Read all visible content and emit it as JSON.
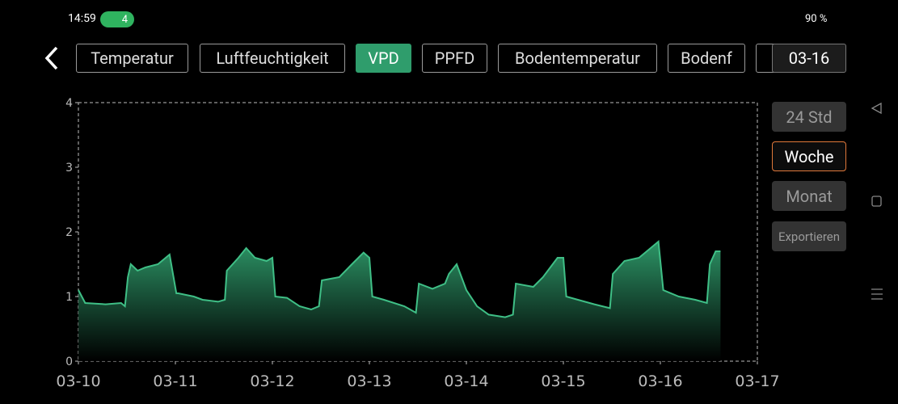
{
  "status_bar": {
    "time": "14:59",
    "badge": "4",
    "battery": "90 %"
  },
  "tabs": [
    "Temperatur",
    "Luftfeuchtigkeit",
    "VPD",
    "PPFD",
    "Bodentemperatur",
    "Bodenf"
  ],
  "date_button": "03-16",
  "side_buttons": [
    "24 Std",
    "Woche",
    "Monat",
    "Exportieren"
  ],
  "chart_data": {
    "type": "area",
    "color": "#3fbf86",
    "x": [
      0,
      0.07,
      0.28,
      0.44,
      0.48,
      0.51,
      0.54,
      0.61,
      0.69,
      0.82,
      0.9,
      0.94,
      1.01,
      1.03,
      1.19,
      1.28,
      1.44,
      1.51,
      1.53,
      1.65,
      1.73,
      1.82,
      1.94,
      2.0,
      2.03,
      2.15,
      2.28,
      2.4,
      2.48,
      2.51,
      2.69,
      2.82,
      2.94,
      3.0,
      3.03,
      3.15,
      3.36,
      3.48,
      3.51,
      3.65,
      3.78,
      3.82,
      3.9,
      4.0,
      4.11,
      4.23,
      4.4,
      4.48,
      4.51,
      4.69,
      4.79,
      4.94,
      5.0,
      5.03,
      5.15,
      5.32,
      5.48,
      5.51,
      5.63,
      5.78,
      5.9,
      5.98,
      6.03,
      6.19,
      6.36,
      6.48,
      6.51,
      6.57,
      6.62
    ],
    "values": [
      1.1,
      0.9,
      0.88,
      0.9,
      0.85,
      1.3,
      1.5,
      1.4,
      1.45,
      1.5,
      1.6,
      1.65,
      1.05,
      1.05,
      1.0,
      0.95,
      0.92,
      0.95,
      1.4,
      1.6,
      1.75,
      1.6,
      1.55,
      1.6,
      1.0,
      0.98,
      0.85,
      0.8,
      0.85,
      1.25,
      1.3,
      1.5,
      1.68,
      1.6,
      1.0,
      0.95,
      0.85,
      0.75,
      1.2,
      1.12,
      1.2,
      1.35,
      1.5,
      1.1,
      0.85,
      0.72,
      0.68,
      0.72,
      1.2,
      1.15,
      1.3,
      1.6,
      1.6,
      1.0,
      0.95,
      0.88,
      0.82,
      1.35,
      1.55,
      1.6,
      1.75,
      1.85,
      1.1,
      1.0,
      0.95,
      0.9,
      1.5,
      1.7,
      1.7
    ],
    "xlim": [
      0,
      7
    ],
    "xticks": [
      {
        "value": 0,
        "label": "03-10"
      },
      {
        "value": 1,
        "label": "03-11"
      },
      {
        "value": 2,
        "label": "03-12"
      },
      {
        "value": 3,
        "label": "03-13"
      },
      {
        "value": 4,
        "label": "03-14"
      },
      {
        "value": 5,
        "label": "03-15"
      },
      {
        "value": 6,
        "label": "03-16"
      },
      {
        "value": 7,
        "label": "03-17"
      }
    ],
    "ylim": [
      0,
      4
    ],
    "yticks": [
      0,
      1,
      2,
      3,
      4
    ]
  }
}
